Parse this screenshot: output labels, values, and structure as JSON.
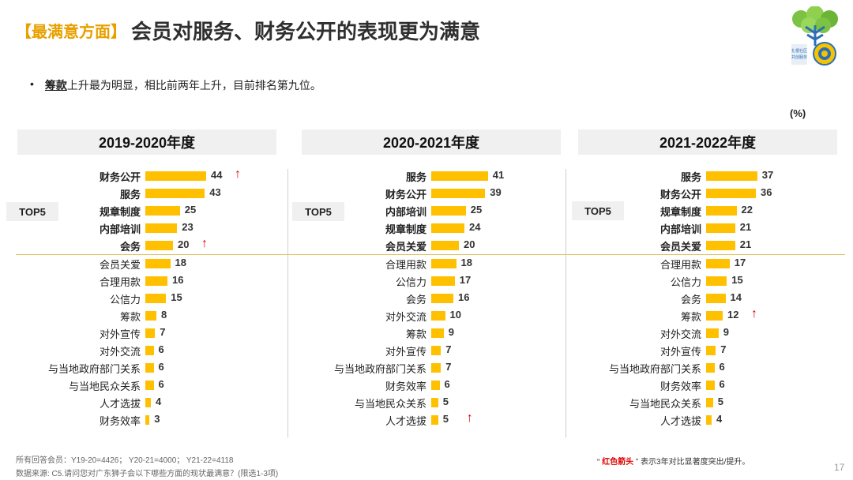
{
  "title": {
    "bracket": "【最满意方面】",
    "main": "会员对服务、财务公开的表现更为满意"
  },
  "logo": {
    "icon": "tree-lion-logo-icon",
    "caption_1": "扎根社区",
    "caption_2": "共创服务"
  },
  "bullet": {
    "dot": "•",
    "keyword": "筹款",
    "text": "上升最为明显，相比前两年上升，目前排名第九位。"
  },
  "unit": "(%)",
  "top5_label": "TOP5",
  "colors": {
    "bar": "#ffc000",
    "arrow": "#e00000",
    "accent": "#e8a000"
  },
  "chart_data": [
    {
      "type": "bar",
      "orientation": "horizontal",
      "title": "2019-2020年度",
      "categories": [
        "财务公开",
        "服务",
        "规章制度",
        "内部培训",
        "会务",
        "会员关爱",
        "合理用款",
        "公信力",
        "筹款",
        "对外宣传",
        "对外交流",
        "与当地政府部门关系",
        "与当地民众关系",
        "人才选拔",
        "财务效率"
      ],
      "values": [
        44,
        43,
        25,
        23,
        20,
        18,
        16,
        15,
        8,
        7,
        6,
        6,
        6,
        4,
        3
      ],
      "top5_bold": [
        true,
        true,
        true,
        true,
        true,
        false,
        false,
        false,
        false,
        false,
        false,
        false,
        false,
        false,
        false
      ],
      "arrows": [
        true,
        false,
        false,
        false,
        true,
        false,
        false,
        false,
        false,
        false,
        false,
        false,
        false,
        false,
        false
      ],
      "arrow_glyph": "↑",
      "xlim": [
        0,
        50
      ]
    },
    {
      "type": "bar",
      "orientation": "horizontal",
      "title": "2020-2021年度",
      "categories": [
        "服务",
        "财务公开",
        "内部培训",
        "规章制度",
        "会员关爱",
        "合理用款",
        "公信力",
        "会务",
        "对外交流",
        "筹款",
        "对外宣传",
        "与当地政府部门关系",
        "财务效率",
        "与当地民众关系",
        "人才选拔"
      ],
      "values": [
        41,
        39,
        25,
        24,
        20,
        18,
        17,
        16,
        10,
        9,
        7,
        7,
        6,
        5,
        5
      ],
      "top5_bold": [
        true,
        true,
        true,
        true,
        true,
        false,
        false,
        false,
        false,
        false,
        false,
        false,
        false,
        false,
        false
      ],
      "arrows": [
        false,
        false,
        false,
        false,
        false,
        false,
        false,
        false,
        false,
        false,
        false,
        false,
        false,
        false,
        true
      ],
      "arrow_glyph": "↑",
      "xlim": [
        0,
        50
      ]
    },
    {
      "type": "bar",
      "orientation": "horizontal",
      "title": "2021-2022年度",
      "categories": [
        "服务",
        "财务公开",
        "规章制度",
        "内部培训",
        "会员关爱",
        "合理用款",
        "公信力",
        "会务",
        "筹款",
        "对外交流",
        "对外宣传",
        "与当地政府部门关系",
        "财务效率",
        "与当地民众关系",
        "人才选拔"
      ],
      "values": [
        37,
        36,
        22,
        21,
        21,
        17,
        15,
        14,
        12,
        9,
        7,
        6,
        6,
        5,
        4
      ],
      "top5_bold": [
        true,
        true,
        true,
        true,
        true,
        false,
        false,
        false,
        false,
        false,
        false,
        false,
        false,
        false,
        false
      ],
      "arrows": [
        false,
        false,
        false,
        false,
        false,
        false,
        false,
        false,
        true,
        false,
        false,
        false,
        false,
        false,
        false
      ],
      "arrow_glyph": "↑",
      "xlim": [
        0,
        50
      ]
    }
  ],
  "footnotes": {
    "line1": "所有回答会员：Y19-20=4426；  Y20-21=4000；  Y21-22=4118",
    "line2": "数据来源:   C5.请问您对广东狮子会以下哪些方面的现状最满意？(限选1-3项)"
  },
  "legend": {
    "open_quote": "“",
    "red_text": "红色箭头",
    "rest": "”  表示3年对比显著度突出/提升。"
  },
  "page_number": "17"
}
